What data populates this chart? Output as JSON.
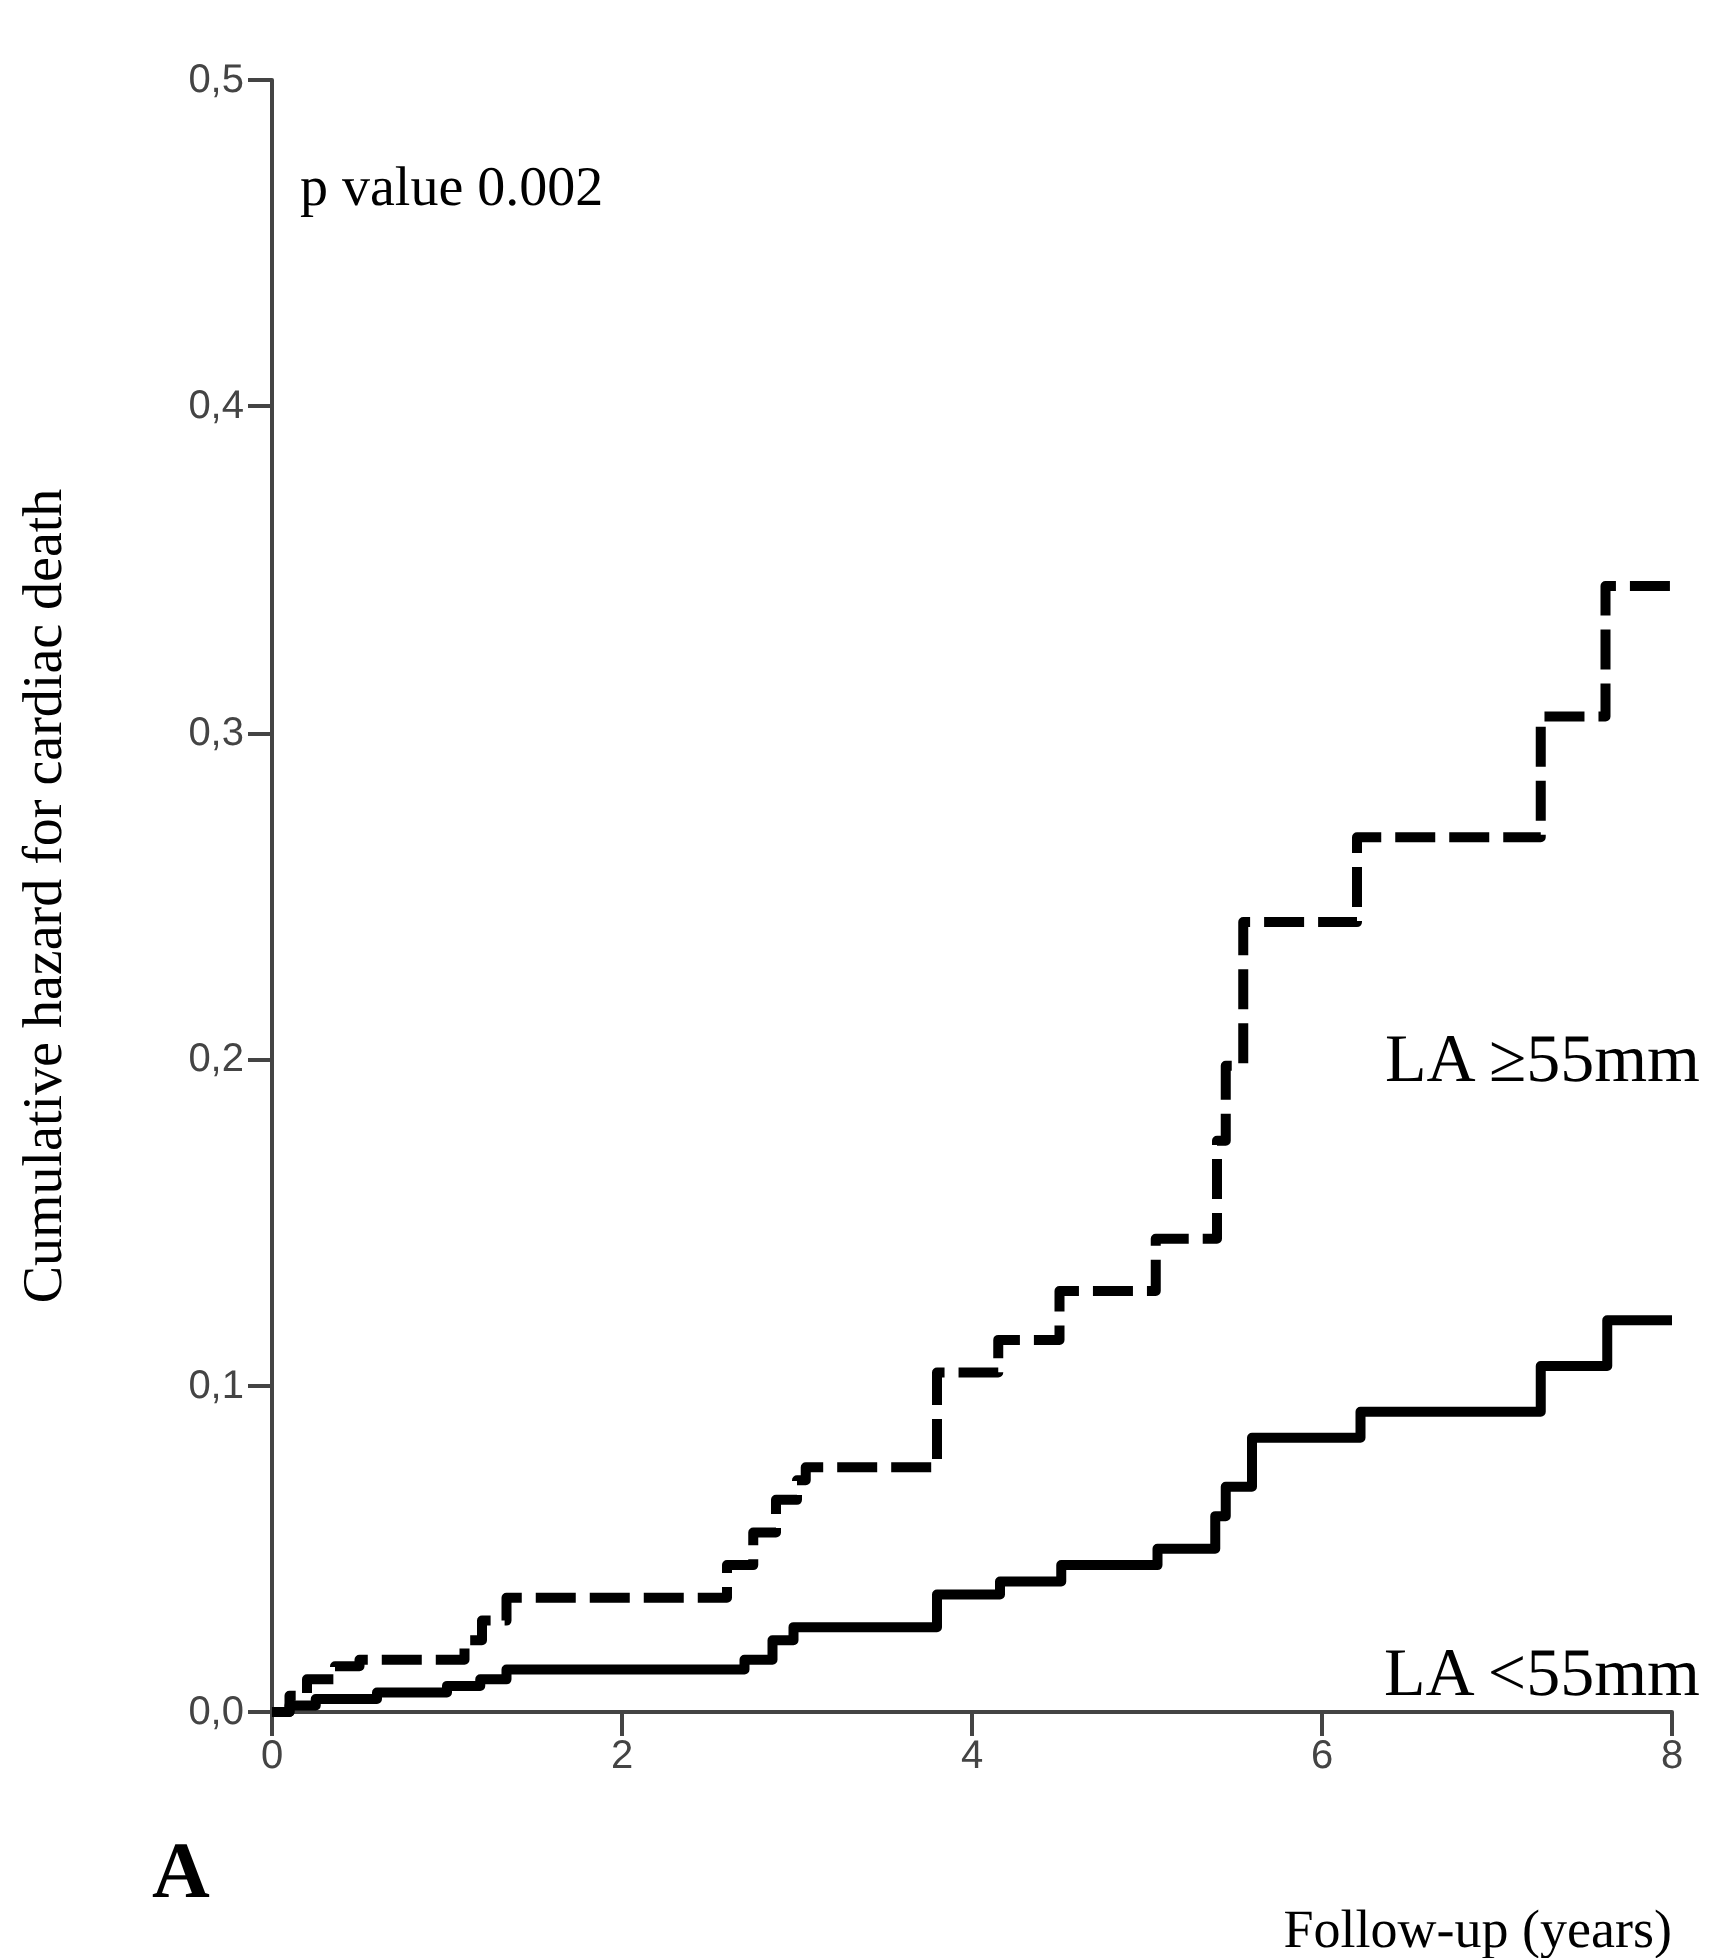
{
  "chart_data": {
    "type": "step",
    "xlabel": "Follow-up (years)",
    "ylabel": "Cumulative hazard for cardiac death",
    "annotations": [
      "p value 0.002",
      "A"
    ],
    "xlim": [
      0,
      8
    ],
    "xticks": [
      0,
      2,
      4,
      6,
      8
    ],
    "ylim": [
      0,
      0.5
    ],
    "yticks": [
      {
        "value": 0,
        "label": "0,0"
      },
      {
        "value": 0.1,
        "label": "0,1"
      },
      {
        "value": 0.2,
        "label": "0,2"
      },
      {
        "value": 0.3,
        "label": "0,3"
      },
      {
        "value": 0.4,
        "label": "0,4"
      },
      {
        "value": 0.5,
        "label": "0,5"
      }
    ],
    "grid": false,
    "legend": false,
    "marker": "none",
    "series": [
      {
        "name": "LA ≥55mm",
        "color": "#000000",
        "line_style": "dashed",
        "x": [
          0,
          0.1,
          0.2,
          0.36,
          0.5,
          1.1,
          1.2,
          1.34,
          2.6,
          2.75,
          2.88,
          3.0,
          3.05,
          3.8,
          4.15,
          4.5,
          5.05,
          5.4,
          5.45,
          5.55,
          6.2,
          7.25,
          7.62,
          8.0
        ],
        "values": [
          0,
          0.005,
          0.01,
          0.014,
          0.016,
          0.022,
          0.028,
          0.035,
          0.045,
          0.055,
          0.065,
          0.071,
          0.075,
          0.104,
          0.114,
          0.129,
          0.145,
          0.175,
          0.198,
          0.242,
          0.268,
          0.305,
          0.345,
          0.345
        ]
      },
      {
        "name": "LA <55mm",
        "color": "#000000",
        "line_style": "solid",
        "x": [
          0,
          0.1,
          0.25,
          0.6,
          1.0,
          1.19,
          1.34,
          2.7,
          2.86,
          2.98,
          3.8,
          4.16,
          4.51,
          5.06,
          5.39,
          5.45,
          5.6,
          6.22,
          7.25,
          7.63,
          8.0
        ],
        "values": [
          0,
          0.002,
          0.004,
          0.006,
          0.008,
          0.01,
          0.013,
          0.016,
          0.022,
          0.026,
          0.036,
          0.04,
          0.045,
          0.05,
          0.06,
          0.069,
          0.084,
          0.092,
          0.106,
          0.12,
          0.12
        ]
      }
    ]
  }
}
